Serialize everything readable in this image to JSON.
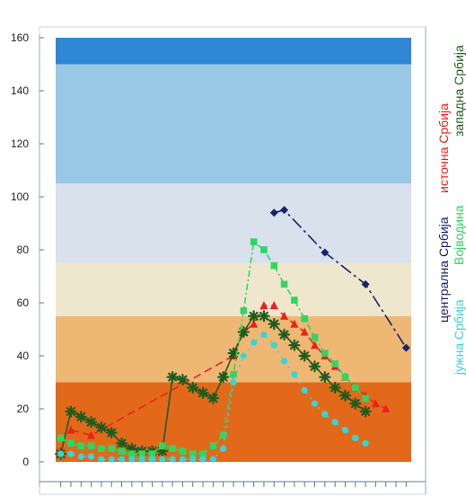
{
  "chart_data": {
    "type": "line",
    "title": "",
    "xlabel": "",
    "ylabel": "",
    "ylim": [
      0,
      160
    ],
    "y_ticks": [
      0,
      20,
      40,
      60,
      80,
      100,
      120,
      140,
      160
    ],
    "x": [
      1,
      2,
      3,
      4,
      5,
      6,
      7,
      8,
      9,
      10,
      11,
      12,
      13,
      14,
      15,
      16,
      17,
      18,
      19,
      20,
      21,
      22,
      23,
      24,
      25,
      26,
      27,
      28,
      29,
      30,
      31,
      32,
      33,
      34,
      35
    ],
    "xlim": [
      0.5,
      35.5
    ],
    "grid": false,
    "legend_placement": "right (vertical text)",
    "background_bands": [
      {
        "from": 0,
        "to": 30,
        "color": "#E2691A"
      },
      {
        "from": 30,
        "to": 55,
        "color": "#EFB774"
      },
      {
        "from": 55,
        "to": 75,
        "color": "#EFE7CD"
      },
      {
        "from": 75,
        "to": 105,
        "color": "#D8E1EC"
      },
      {
        "from": 105,
        "to": 150,
        "color": "#99C7E6"
      },
      {
        "from": 150,
        "to": 160,
        "color": "#2E88D6"
      }
    ],
    "series": [
      {
        "name": "централна Србија",
        "color": "#17226B",
        "marker": "diamond",
        "values": [
          null,
          null,
          null,
          null,
          null,
          null,
          null,
          null,
          null,
          null,
          null,
          null,
          null,
          null,
          null,
          null,
          null,
          null,
          null,
          null,
          null,
          94,
          95,
          null,
          null,
          null,
          79,
          null,
          null,
          null,
          67,
          null,
          null,
          null,
          43
        ]
      },
      {
        "name": "источна Србија",
        "color": "#E8231B",
        "marker": "triangle",
        "values": [
          null,
          12,
          null,
          10,
          null,
          null,
          null,
          null,
          null,
          null,
          null,
          null,
          null,
          null,
          null,
          null,
          null,
          40,
          49,
          52,
          59,
          59,
          55,
          52,
          49,
          44,
          40,
          36,
          32,
          28,
          25,
          22,
          20,
          null,
          null
        ]
      },
      {
        "name": "западна Србија",
        "color": "#1E5C1E",
        "marker": "asterisk",
        "values": [
          3,
          19,
          17,
          15,
          13,
          11,
          7,
          5,
          4,
          4,
          4,
          32,
          31,
          28,
          26,
          24,
          32,
          41,
          49,
          55,
          55,
          52,
          48,
          44,
          40,
          36,
          32,
          28,
          25,
          22,
          19,
          null,
          null,
          null,
          null
        ]
      },
      {
        "name": "Војводина",
        "color": "#31D562",
        "marker": "square",
        "values": [
          9,
          7,
          6,
          6,
          5,
          5,
          4,
          3,
          3,
          3,
          6,
          5,
          4,
          3,
          3,
          6,
          10,
          33,
          57,
          83,
          80,
          74,
          67,
          61,
          54,
          47,
          41,
          37,
          32,
          28,
          24,
          null,
          null,
          null,
          null
        ]
      },
      {
        "name": "јужна Србија",
        "color": "#38D4D8",
        "marker": "circle",
        "values": [
          3,
          3,
          2,
          2,
          1,
          1,
          1,
          1,
          1,
          1,
          1,
          1,
          1,
          1,
          1,
          1,
          5,
          30,
          40,
          45,
          48,
          44,
          38,
          33,
          27,
          22,
          18,
          15,
          12,
          9,
          7,
          null,
          null,
          null,
          null
        ]
      }
    ]
  }
}
